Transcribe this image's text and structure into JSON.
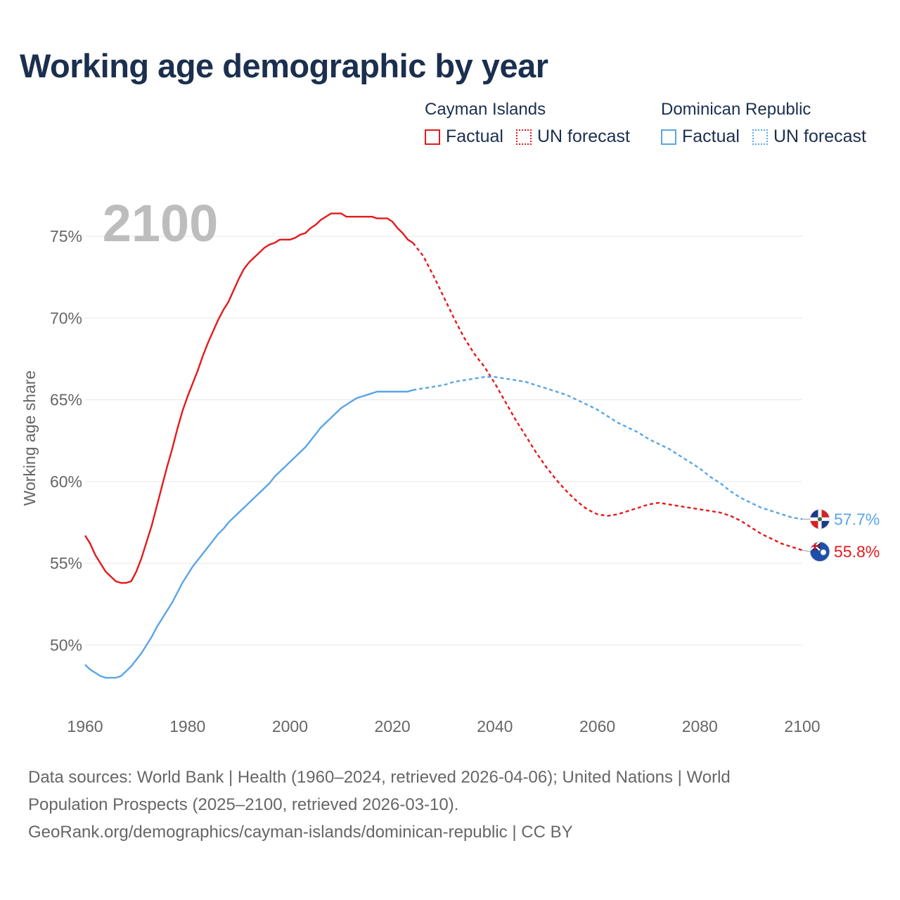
{
  "title": "Working age demographic by year",
  "legend": {
    "groups": [
      {
        "country": "Cayman Islands",
        "color": "#e31a1c",
        "factual_label": "Factual",
        "forecast_label": "UN forecast"
      },
      {
        "country": "Dominican Republic",
        "color": "#5aa5e6",
        "factual_label": "Factual",
        "forecast_label": "UN forecast"
      }
    ]
  },
  "year_watermark": "2100",
  "footer": {
    "line1": "Data sources: World Bank | Health (1960–2024, retrieved 2026-04-06); United Nations | World",
    "line2": "Population Prospects (2025–2100, retrieved 2026-03-10).",
    "line3": "GeoRank.org/demographics/cayman-islands/dominican-republic | CC BY"
  },
  "chart_data": {
    "type": "line",
    "title": "Working age demographic by year",
    "ylabel": "Working age share",
    "xlabel": "",
    "xlim": [
      1960,
      2100
    ],
    "ylim": [
      45.5,
      77.5
    ],
    "x_ticks": [
      1960,
      1980,
      2000,
      2020,
      2040,
      2060,
      2080,
      2100
    ],
    "y_ticks": [
      50,
      55,
      60,
      65,
      70,
      75
    ],
    "y_tick_labels": [
      "50%",
      "55%",
      "60%",
      "65%",
      "70%",
      "75%"
    ],
    "grid": true,
    "forecast_start": 2024,
    "series": [
      {
        "name": "Cayman Islands",
        "color": "#e31a1c",
        "end_label": "55.8%",
        "points": [
          [
            1960,
            56.7
          ],
          [
            1961,
            56.2
          ],
          [
            1962,
            55.5
          ],
          [
            1963,
            55.0
          ],
          [
            1964,
            54.5
          ],
          [
            1965,
            54.2
          ],
          [
            1966,
            53.9
          ],
          [
            1967,
            53.8
          ],
          [
            1968,
            53.8
          ],
          [
            1969,
            53.9
          ],
          [
            1970,
            54.5
          ],
          [
            1971,
            55.3
          ],
          [
            1972,
            56.3
          ],
          [
            1973,
            57.3
          ],
          [
            1974,
            58.5
          ],
          [
            1975,
            59.7
          ],
          [
            1976,
            60.9
          ],
          [
            1977,
            62.0
          ],
          [
            1978,
            63.2
          ],
          [
            1979,
            64.3
          ],
          [
            1980,
            65.2
          ],
          [
            1981,
            66.0
          ],
          [
            1982,
            66.8
          ],
          [
            1983,
            67.7
          ],
          [
            1984,
            68.5
          ],
          [
            1985,
            69.2
          ],
          [
            1986,
            69.9
          ],
          [
            1987,
            70.5
          ],
          [
            1988,
            71.0
          ],
          [
            1989,
            71.7
          ],
          [
            1990,
            72.4
          ],
          [
            1991,
            73.0
          ],
          [
            1992,
            73.4
          ],
          [
            1993,
            73.7
          ],
          [
            1994,
            74.0
          ],
          [
            1995,
            74.3
          ],
          [
            1996,
            74.5
          ],
          [
            1997,
            74.6
          ],
          [
            1998,
            74.8
          ],
          [
            1999,
            74.8
          ],
          [
            2000,
            74.8
          ],
          [
            2001,
            74.9
          ],
          [
            2002,
            75.1
          ],
          [
            2003,
            75.2
          ],
          [
            2004,
            75.5
          ],
          [
            2005,
            75.7
          ],
          [
            2006,
            76.0
          ],
          [
            2007,
            76.2
          ],
          [
            2008,
            76.4
          ],
          [
            2009,
            76.4
          ],
          [
            2010,
            76.4
          ],
          [
            2011,
            76.2
          ],
          [
            2012,
            76.2
          ],
          [
            2013,
            76.2
          ],
          [
            2014,
            76.2
          ],
          [
            2015,
            76.2
          ],
          [
            2016,
            76.2
          ],
          [
            2017,
            76.1
          ],
          [
            2018,
            76.1
          ],
          [
            2019,
            76.1
          ],
          [
            2020,
            75.9
          ],
          [
            2021,
            75.5
          ],
          [
            2022,
            75.2
          ],
          [
            2023,
            74.8
          ],
          [
            2024,
            74.6
          ],
          [
            2026,
            73.8
          ],
          [
            2028,
            72.6
          ],
          [
            2030,
            71.3
          ],
          [
            2032,
            70.0
          ],
          [
            2034,
            68.8
          ],
          [
            2036,
            67.8
          ],
          [
            2038,
            67.0
          ],
          [
            2040,
            66.0
          ],
          [
            2042,
            64.9
          ],
          [
            2044,
            63.8
          ],
          [
            2046,
            62.8
          ],
          [
            2048,
            61.8
          ],
          [
            2050,
            60.9
          ],
          [
            2052,
            60.1
          ],
          [
            2054,
            59.4
          ],
          [
            2056,
            58.8
          ],
          [
            2058,
            58.3
          ],
          [
            2060,
            58.0
          ],
          [
            2062,
            57.9
          ],
          [
            2064,
            58.0
          ],
          [
            2066,
            58.2
          ],
          [
            2068,
            58.4
          ],
          [
            2070,
            58.6
          ],
          [
            2072,
            58.7
          ],
          [
            2074,
            58.6
          ],
          [
            2076,
            58.5
          ],
          [
            2078,
            58.4
          ],
          [
            2080,
            58.3
          ],
          [
            2082,
            58.2
          ],
          [
            2084,
            58.1
          ],
          [
            2086,
            57.9
          ],
          [
            2088,
            57.6
          ],
          [
            2090,
            57.2
          ],
          [
            2092,
            56.8
          ],
          [
            2094,
            56.5
          ],
          [
            2096,
            56.2
          ],
          [
            2098,
            56.0
          ],
          [
            2100,
            55.8
          ]
        ]
      },
      {
        "name": "Dominican Republic",
        "color": "#5aa5e6",
        "end_label": "57.7%",
        "points": [
          [
            1960,
            48.8
          ],
          [
            1961,
            48.5
          ],
          [
            1962,
            48.3
          ],
          [
            1963,
            48.1
          ],
          [
            1964,
            48.0
          ],
          [
            1965,
            48.0
          ],
          [
            1966,
            48.0
          ],
          [
            1967,
            48.1
          ],
          [
            1968,
            48.4
          ],
          [
            1969,
            48.7
          ],
          [
            1970,
            49.1
          ],
          [
            1971,
            49.5
          ],
          [
            1972,
            50.0
          ],
          [
            1973,
            50.5
          ],
          [
            1974,
            51.1
          ],
          [
            1975,
            51.6
          ],
          [
            1976,
            52.1
          ],
          [
            1977,
            52.6
          ],
          [
            1978,
            53.2
          ],
          [
            1979,
            53.8
          ],
          [
            1980,
            54.3
          ],
          [
            1981,
            54.8
          ],
          [
            1982,
            55.2
          ],
          [
            1983,
            55.6
          ],
          [
            1984,
            56.0
          ],
          [
            1985,
            56.4
          ],
          [
            1986,
            56.8
          ],
          [
            1987,
            57.1
          ],
          [
            1988,
            57.5
          ],
          [
            1989,
            57.8
          ],
          [
            1990,
            58.1
          ],
          [
            1991,
            58.4
          ],
          [
            1992,
            58.7
          ],
          [
            1993,
            59.0
          ],
          [
            1994,
            59.3
          ],
          [
            1995,
            59.6
          ],
          [
            1996,
            59.9
          ],
          [
            1997,
            60.3
          ],
          [
            1998,
            60.6
          ],
          [
            1999,
            60.9
          ],
          [
            2000,
            61.2
          ],
          [
            2001,
            61.5
          ],
          [
            2002,
            61.8
          ],
          [
            2003,
            62.1
          ],
          [
            2004,
            62.5
          ],
          [
            2005,
            62.9
          ],
          [
            2006,
            63.3
          ],
          [
            2007,
            63.6
          ],
          [
            2008,
            63.9
          ],
          [
            2009,
            64.2
          ],
          [
            2010,
            64.5
          ],
          [
            2011,
            64.7
          ],
          [
            2012,
            64.9
          ],
          [
            2013,
            65.1
          ],
          [
            2014,
            65.2
          ],
          [
            2015,
            65.3
          ],
          [
            2016,
            65.4
          ],
          [
            2017,
            65.5
          ],
          [
            2018,
            65.5
          ],
          [
            2019,
            65.5
          ],
          [
            2020,
            65.5
          ],
          [
            2021,
            65.5
          ],
          [
            2022,
            65.5
          ],
          [
            2023,
            65.5
          ],
          [
            2024,
            65.6
          ],
          [
            2026,
            65.7
          ],
          [
            2028,
            65.8
          ],
          [
            2030,
            65.9
          ],
          [
            2032,
            66.1
          ],
          [
            2034,
            66.2
          ],
          [
            2036,
            66.3
          ],
          [
            2038,
            66.4
          ],
          [
            2040,
            66.4
          ],
          [
            2042,
            66.3
          ],
          [
            2044,
            66.2
          ],
          [
            2046,
            66.1
          ],
          [
            2048,
            65.9
          ],
          [
            2050,
            65.7
          ],
          [
            2052,
            65.5
          ],
          [
            2054,
            65.3
          ],
          [
            2056,
            65.0
          ],
          [
            2058,
            64.7
          ],
          [
            2060,
            64.4
          ],
          [
            2062,
            64.0
          ],
          [
            2064,
            63.6
          ],
          [
            2066,
            63.3
          ],
          [
            2068,
            63.0
          ],
          [
            2070,
            62.6
          ],
          [
            2072,
            62.3
          ],
          [
            2074,
            62.0
          ],
          [
            2076,
            61.6
          ],
          [
            2078,
            61.2
          ],
          [
            2080,
            60.8
          ],
          [
            2082,
            60.3
          ],
          [
            2084,
            59.9
          ],
          [
            2086,
            59.4
          ],
          [
            2088,
            59.0
          ],
          [
            2090,
            58.7
          ],
          [
            2092,
            58.4
          ],
          [
            2094,
            58.2
          ],
          [
            2096,
            58.0
          ],
          [
            2098,
            57.8
          ],
          [
            2100,
            57.7
          ]
        ]
      }
    ]
  }
}
